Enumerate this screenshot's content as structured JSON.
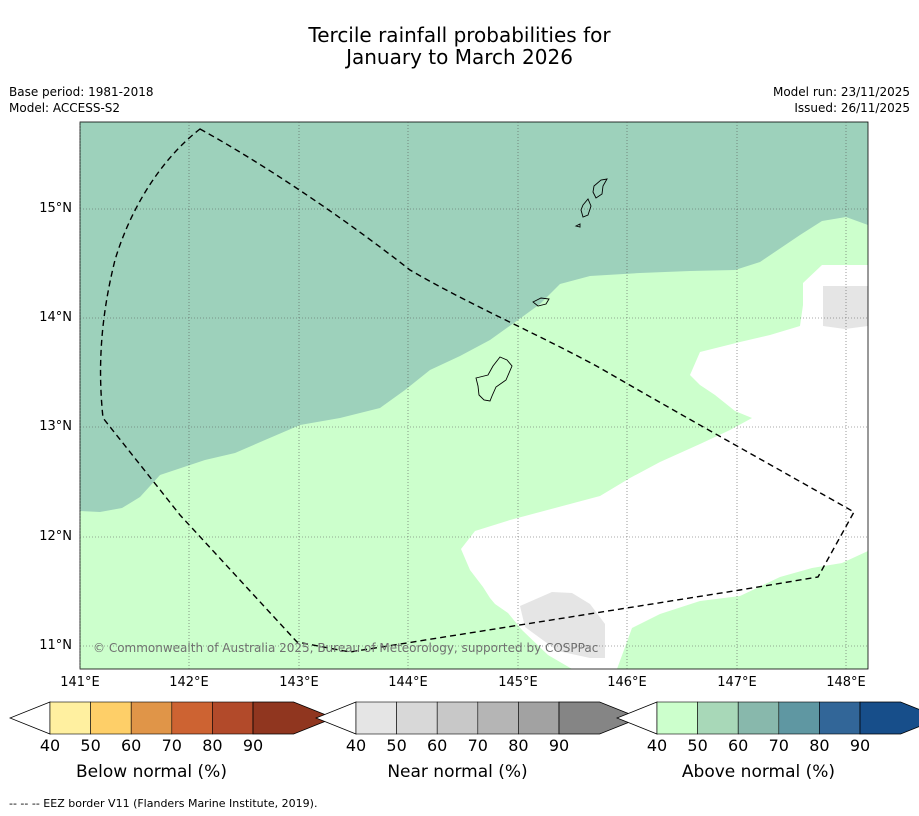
{
  "title": {
    "line1": "Tercile rainfall probabilities for",
    "line2": "January to March 2026"
  },
  "meta_left": {
    "base_period": "Base period: 1981-2018",
    "model": "Model: ACCESS-S2"
  },
  "meta_right": {
    "model_run": "Model run: 23/11/2025",
    "issued": "Issued: 26/11/2025"
  },
  "map": {
    "latitude_labels": [
      "15°N",
      "14°N",
      "13°N",
      "12°N",
      "11°N"
    ],
    "longitude_labels": [
      "141°E",
      "142°E",
      "143°E",
      "144°E",
      "145°E",
      "146°E",
      "147°E",
      "148°E"
    ],
    "copyright": "© Commonwealth of Australia 2025, Bureau of Meteorology, supported by COSPPac",
    "colors": {
      "above_40_50": "#ccffcc",
      "above_50_60": "#9dd1bb",
      "near_40_50": "#e5e5e5",
      "no_signal": "#ffffff"
    }
  },
  "colorbars": [
    {
      "name": "below",
      "title": "Below normal (%)",
      "ticks": [
        "40",
        "50",
        "60",
        "70",
        "80",
        "90"
      ],
      "colors": [
        "#fff0a0",
        "#fecf68",
        "#e09548",
        "#cd6332",
        "#b24a2a",
        "#90361f"
      ]
    },
    {
      "name": "near",
      "title": "Near normal (%)",
      "ticks": [
        "40",
        "50",
        "60",
        "70",
        "80",
        "90"
      ],
      "colors": [
        "#e5e5e5",
        "#d8d8d8",
        "#c8c8c8",
        "#b5b5b5",
        "#a2a2a2",
        "#858585"
      ]
    },
    {
      "name": "above",
      "title": "Above normal (%)",
      "ticks": [
        "40",
        "50",
        "60",
        "70",
        "80",
        "90"
      ],
      "colors": [
        "#ccffcc",
        "#a8d8b8",
        "#88b8ac",
        "#5f97a2",
        "#326698",
        "#174e8a"
      ]
    }
  ],
  "footnote": "-- -- -- EEZ border V11 (Flanders Marine Institute, 2019)."
}
